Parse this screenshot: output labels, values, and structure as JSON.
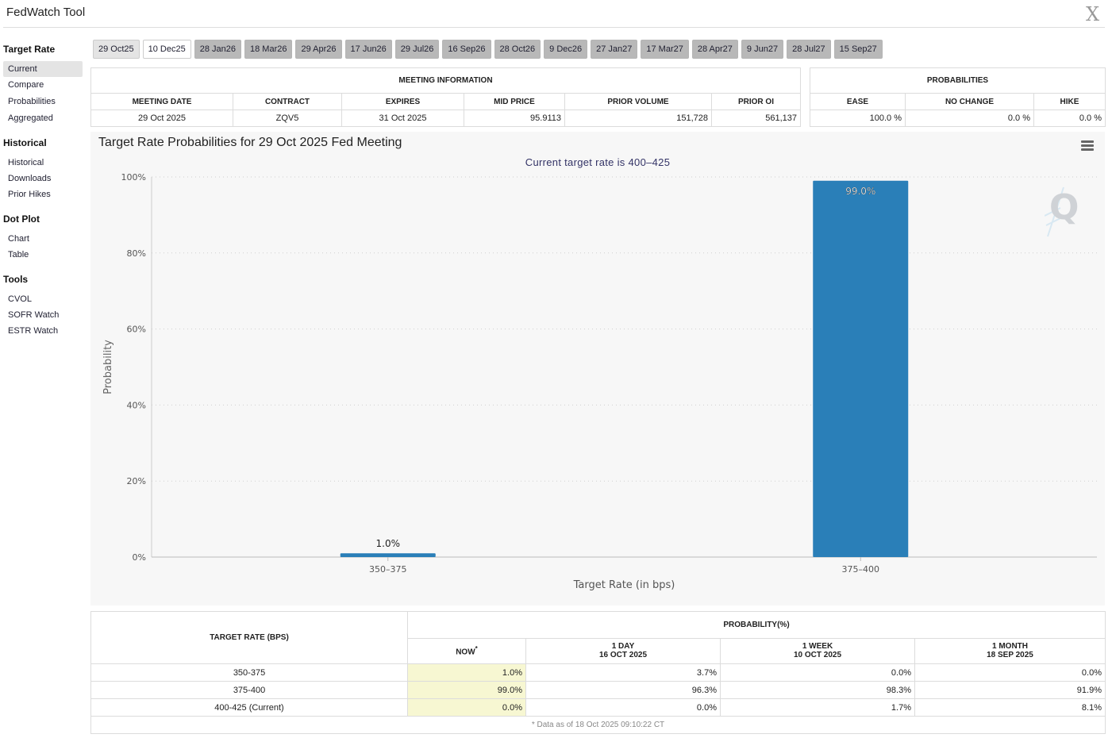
{
  "app": {
    "title": "FedWatch Tool",
    "close_glyph": "X"
  },
  "sidebar": {
    "sections": [
      {
        "heading": "Target Rate",
        "items": [
          "Current",
          "Compare",
          "Probabilities",
          "Aggregated"
        ]
      },
      {
        "heading": "Historical",
        "items": [
          "Historical",
          "Downloads",
          "Prior Hikes"
        ]
      },
      {
        "heading": "Dot Plot",
        "items": [
          "Chart",
          "Table"
        ]
      },
      {
        "heading": "Tools",
        "items": [
          "CVOL",
          "SOFR Watch",
          "ESTR Watch"
        ]
      }
    ]
  },
  "tabs": [
    "29 Oct25",
    "10 Dec25",
    "28 Jan26",
    "18 Mar26",
    "29 Apr26",
    "17 Jun26",
    "29 Jul26",
    "16 Sep26",
    "28 Oct26",
    "9 Dec26",
    "27 Jan27",
    "17 Mar27",
    "28 Apr27",
    "9 Jun27",
    "28 Jul27",
    "15 Sep27"
  ],
  "meeting_info": {
    "header": "MEETING INFORMATION",
    "columns": [
      "MEETING DATE",
      "CONTRACT",
      "EXPIRES",
      "MID PRICE",
      "PRIOR VOLUME",
      "PRIOR OI"
    ],
    "row": [
      "29 Oct 2025",
      "ZQV5",
      "31 Oct 2025",
      "95.9113",
      "151,728",
      "561,137"
    ]
  },
  "probabilities": {
    "header": "PROBABILITIES",
    "columns": [
      "EASE",
      "NO CHANGE",
      "HIKE"
    ],
    "row": [
      "100.0 %",
      "0.0 %",
      "0.0 %"
    ]
  },
  "chart": {
    "menu_icon": "hamburger-menu-icon",
    "logo_text": "Q"
  },
  "chart_data": {
    "type": "bar",
    "title": "Target Rate Probabilities for 29 Oct 2025 Fed Meeting",
    "subtitle": "Current target rate is 400–425",
    "xlabel": "Target Rate (in bps)",
    "ylabel": "Probability",
    "categories": [
      "350–375",
      "375–400"
    ],
    "values": [
      1.0,
      99.0
    ],
    "data_labels": [
      "1.0%",
      "99.0%"
    ],
    "ylim": [
      0,
      100
    ],
    "yticks": [
      "0%",
      "20%",
      "40%",
      "60%",
      "80%",
      "100%"
    ],
    "grid": true,
    "color": "#2a7fb8"
  },
  "prob_table": {
    "col_target": "TARGET RATE (BPS)",
    "col_group": "PROBABILITY(%)",
    "col_now": "NOW",
    "col_now_mark": "*",
    "col_1day": "1 DAY",
    "col_1day_date": "16 OCT 2025",
    "col_1week": "1 WEEK",
    "col_1week_date": "10 OCT 2025",
    "col_1month": "1 MONTH",
    "col_1month_date": "18 SEP 2025",
    "rows": [
      {
        "rate": "350-375",
        "now": "1.0%",
        "d1": "3.7%",
        "w1": "0.0%",
        "m1": "0.0%"
      },
      {
        "rate": "375-400",
        "now": "99.0%",
        "d1": "96.3%",
        "w1": "98.3%",
        "m1": "91.9%"
      },
      {
        "rate": "400-425 (Current)",
        "now": "0.0%",
        "d1": "0.0%",
        "w1": "1.7%",
        "m1": "8.1%"
      }
    ],
    "footnote": "* Data as of 18 Oct 2025 09:10:22 CT"
  }
}
